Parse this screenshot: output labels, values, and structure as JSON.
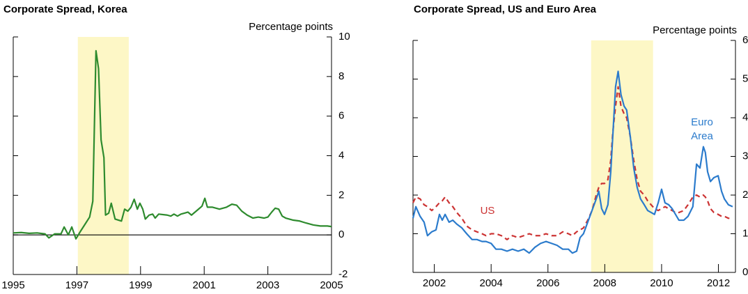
{
  "chart_data": [
    {
      "type": "line",
      "title": "Corporate Spread, Korea",
      "ylabel": "Percentage points",
      "x": [
        1995.0,
        1995.25,
        1995.5,
        1995.75,
        1996.0,
        1996.12,
        1996.3,
        1996.5,
        1996.6,
        1996.73,
        1996.84,
        1996.97,
        1997.12,
        1997.28,
        1997.4,
        1997.5,
        1997.6,
        1997.68,
        1997.76,
        1997.85,
        1997.9,
        1998.0,
        1998.08,
        1998.2,
        1998.4,
        1998.5,
        1998.6,
        1998.7,
        1998.8,
        1998.9,
        1998.98,
        1999.07,
        1999.15,
        1999.27,
        1999.38,
        1999.46,
        1999.57,
        1999.84,
        1999.95,
        2000.05,
        2000.16,
        2000.27,
        2000.38,
        2000.49,
        2000.6,
        2000.71,
        2000.82,
        2000.93,
        2001.02,
        2001.1,
        2001.26,
        2001.48,
        2001.7,
        2001.87,
        2002.02,
        2002.18,
        2002.35,
        2002.53,
        2002.7,
        2002.88,
        2003.0,
        2003.12,
        2003.23,
        2003.34,
        2003.45,
        2003.56,
        2003.67,
        2003.78,
        2004.0,
        2004.2,
        2004.43,
        2004.65,
        2004.87,
        2005.0
      ],
      "values": [
        0.1,
        0.12,
        0.08,
        0.1,
        0.05,
        -0.15,
        0.05,
        0.05,
        0.4,
        0.0,
        0.4,
        -0.2,
        0.2,
        0.6,
        0.9,
        1.7,
        9.3,
        8.4,
        4.8,
        3.9,
        1.0,
        1.1,
        1.6,
        0.8,
        0.7,
        1.3,
        1.2,
        1.4,
        1.8,
        1.3,
        1.6,
        1.3,
        0.8,
        1.0,
        1.05,
        0.85,
        1.05,
        1.0,
        0.95,
        1.05,
        0.95,
        1.05,
        1.1,
        1.15,
        1.0,
        1.15,
        1.3,
        1.45,
        1.85,
        1.4,
        1.4,
        1.3,
        1.4,
        1.55,
        1.5,
        1.2,
        1.0,
        0.85,
        0.9,
        0.85,
        0.9,
        1.15,
        1.35,
        1.3,
        0.95,
        0.85,
        0.8,
        0.75,
        0.7,
        0.6,
        0.5,
        0.45,
        0.45,
        0.42
      ],
      "color": "#2e8b2e",
      "xlim": [
        1995,
        2005
      ],
      "xticks": [
        1995,
        1997,
        1999,
        2001,
        2003,
        2005
      ],
      "ylim": [
        -2,
        10
      ],
      "yticks": [
        -2,
        0,
        2,
        4,
        6,
        8,
        10
      ],
      "shaded_x": [
        1997.03,
        1998.63
      ],
      "zero_line": true
    },
    {
      "type": "line",
      "title": "Corporate Spread, US and Euro Area",
      "ylabel": "Percentage points",
      "x": [
        2001.25,
        2001.35,
        2001.5,
        2001.64,
        2001.76,
        2001.91,
        2002.06,
        2002.18,
        2002.28,
        2002.38,
        2002.52,
        2002.65,
        2002.79,
        2002.97,
        2003.14,
        2003.33,
        2003.5,
        2003.68,
        2003.82,
        2004.0,
        2004.17,
        2004.36,
        2004.56,
        2004.75,
        2004.95,
        2005.15,
        2005.34,
        2005.54,
        2005.74,
        2005.93,
        2006.13,
        2006.32,
        2006.52,
        2006.72,
        2006.86,
        2007.01,
        2007.13,
        2007.25,
        2007.4,
        2007.55,
        2007.7,
        2007.79,
        2007.89,
        2007.99,
        2008.11,
        2008.21,
        2008.28,
        2008.38,
        2008.47,
        2008.57,
        2008.68,
        2008.77,
        2008.9,
        2009.02,
        2009.14,
        2009.26,
        2009.39,
        2009.51,
        2009.63,
        2009.75,
        2009.88,
        2010.0,
        2010.12,
        2010.25,
        2010.37,
        2010.49,
        2010.61,
        2010.78,
        2010.93,
        2011.1,
        2011.23,
        2011.35,
        2011.47,
        2011.54,
        2011.62,
        2011.72,
        2011.84,
        2011.99,
        2012.11,
        2012.21,
        2012.35,
        2012.5
      ],
      "series": [
        {
          "name": "US",
          "color": "#cc3333",
          "style": "dashed",
          "values": [
            1.8,
            1.95,
            1.9,
            1.75,
            1.7,
            1.6,
            1.7,
            1.8,
            1.85,
            1.95,
            1.8,
            1.7,
            1.55,
            1.4,
            1.2,
            1.1,
            1.05,
            1.0,
            0.95,
            1.0,
            1.0,
            0.95,
            0.85,
            0.95,
            0.9,
            0.95,
            1.0,
            0.95,
            0.95,
            1.0,
            0.95,
            0.95,
            1.05,
            1.0,
            0.95,
            1.05,
            1.1,
            1.15,
            1.35,
            1.6,
            2.0,
            2.2,
            2.3,
            2.3,
            2.4,
            2.9,
            3.6,
            4.3,
            4.8,
            4.3,
            4.1,
            4.0,
            3.5,
            2.9,
            2.4,
            2.1,
            2.0,
            1.85,
            1.75,
            1.65,
            1.6,
            1.65,
            1.7,
            1.65,
            1.6,
            1.55,
            1.55,
            1.6,
            1.75,
            1.95,
            2.0,
            1.95,
            2.0,
            1.95,
            1.85,
            1.65,
            1.55,
            1.5,
            1.45,
            1.45,
            1.4,
            1.4
          ]
        },
        {
          "name": "Euro Area",
          "color": "#2b7bcc",
          "style": "solid",
          "values": [
            1.4,
            1.7,
            1.45,
            1.3,
            0.95,
            1.05,
            1.1,
            1.5,
            1.35,
            1.5,
            1.3,
            1.35,
            1.25,
            1.15,
            1.0,
            0.85,
            0.85,
            0.8,
            0.8,
            0.75,
            0.6,
            0.6,
            0.55,
            0.6,
            0.55,
            0.6,
            0.5,
            0.65,
            0.75,
            0.8,
            0.75,
            0.7,
            0.6,
            0.6,
            0.5,
            0.55,
            0.9,
            1.0,
            1.3,
            1.6,
            1.9,
            2.1,
            1.65,
            1.5,
            1.75,
            2.6,
            3.5,
            4.8,
            5.2,
            4.6,
            4.3,
            4.2,
            3.5,
            2.7,
            2.2,
            1.9,
            1.75,
            1.6,
            1.55,
            1.5,
            1.8,
            2.15,
            1.8,
            1.75,
            1.65,
            1.5,
            1.35,
            1.35,
            1.45,
            1.7,
            2.8,
            2.7,
            3.25,
            3.1,
            2.6,
            2.35,
            2.45,
            2.5,
            2.1,
            1.9,
            1.75,
            1.7
          ]
        }
      ],
      "xlim": [
        2001.25,
        2012.6
      ],
      "xticks": [
        2002,
        2004,
        2006,
        2008,
        2010,
        2012
      ],
      "ylim": [
        0,
        6
      ],
      "yticks": [
        0,
        1,
        2,
        3,
        4,
        5,
        6
      ],
      "shaded_x": [
        2007.52,
        2009.7
      ],
      "zero_line": false
    }
  ]
}
